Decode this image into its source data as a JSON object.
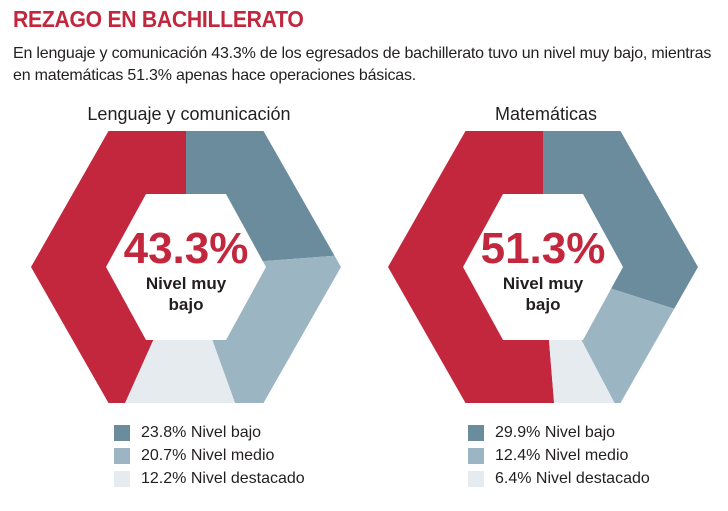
{
  "header": {
    "title": "REZAGO EN BACHILLERATO",
    "subtitle": "En lenguaje y comunicación 43.3% de los egresados de bachillerato tuvo un nivel muy bajo, mientras en matemáticas 51.3% apenas hace operaciones básicas."
  },
  "colors": {
    "muy_bajo": "#c2273d",
    "bajo": "#6a8c9d",
    "medio": "#9cb5c3",
    "destacado": "#e6ebf0",
    "title": "#c2273d"
  },
  "chart_data": [
    {
      "type": "pie",
      "title": "Lenguaje y comunicación",
      "center": {
        "value": "43.3%",
        "label_lines": [
          "Nivel muy",
          "bajo"
        ]
      },
      "categories": [
        "Nivel muy bajo",
        "Nivel bajo",
        "Nivel medio",
        "Nivel destacado"
      ],
      "values": [
        43.3,
        23.8,
        20.7,
        12.2
      ],
      "legend_text": [
        "23.8% Nivel bajo",
        "20.7% Nivel medio",
        "12.2% Nivel destacado"
      ]
    },
    {
      "type": "pie",
      "title": "Matemáticas",
      "center": {
        "value": "51.3%",
        "label_lines": [
          "Nivel muy",
          "bajo"
        ]
      },
      "categories": [
        "Nivel muy bajo",
        "Nivel bajo",
        "Nivel medio",
        "Nivel destacado"
      ],
      "values": [
        51.3,
        29.9,
        12.4,
        6.4
      ],
      "legend_text": [
        "29.9% Nivel bajo",
        "12.4% Nivel medio",
        "6.4% Nivel destacado"
      ]
    }
  ]
}
